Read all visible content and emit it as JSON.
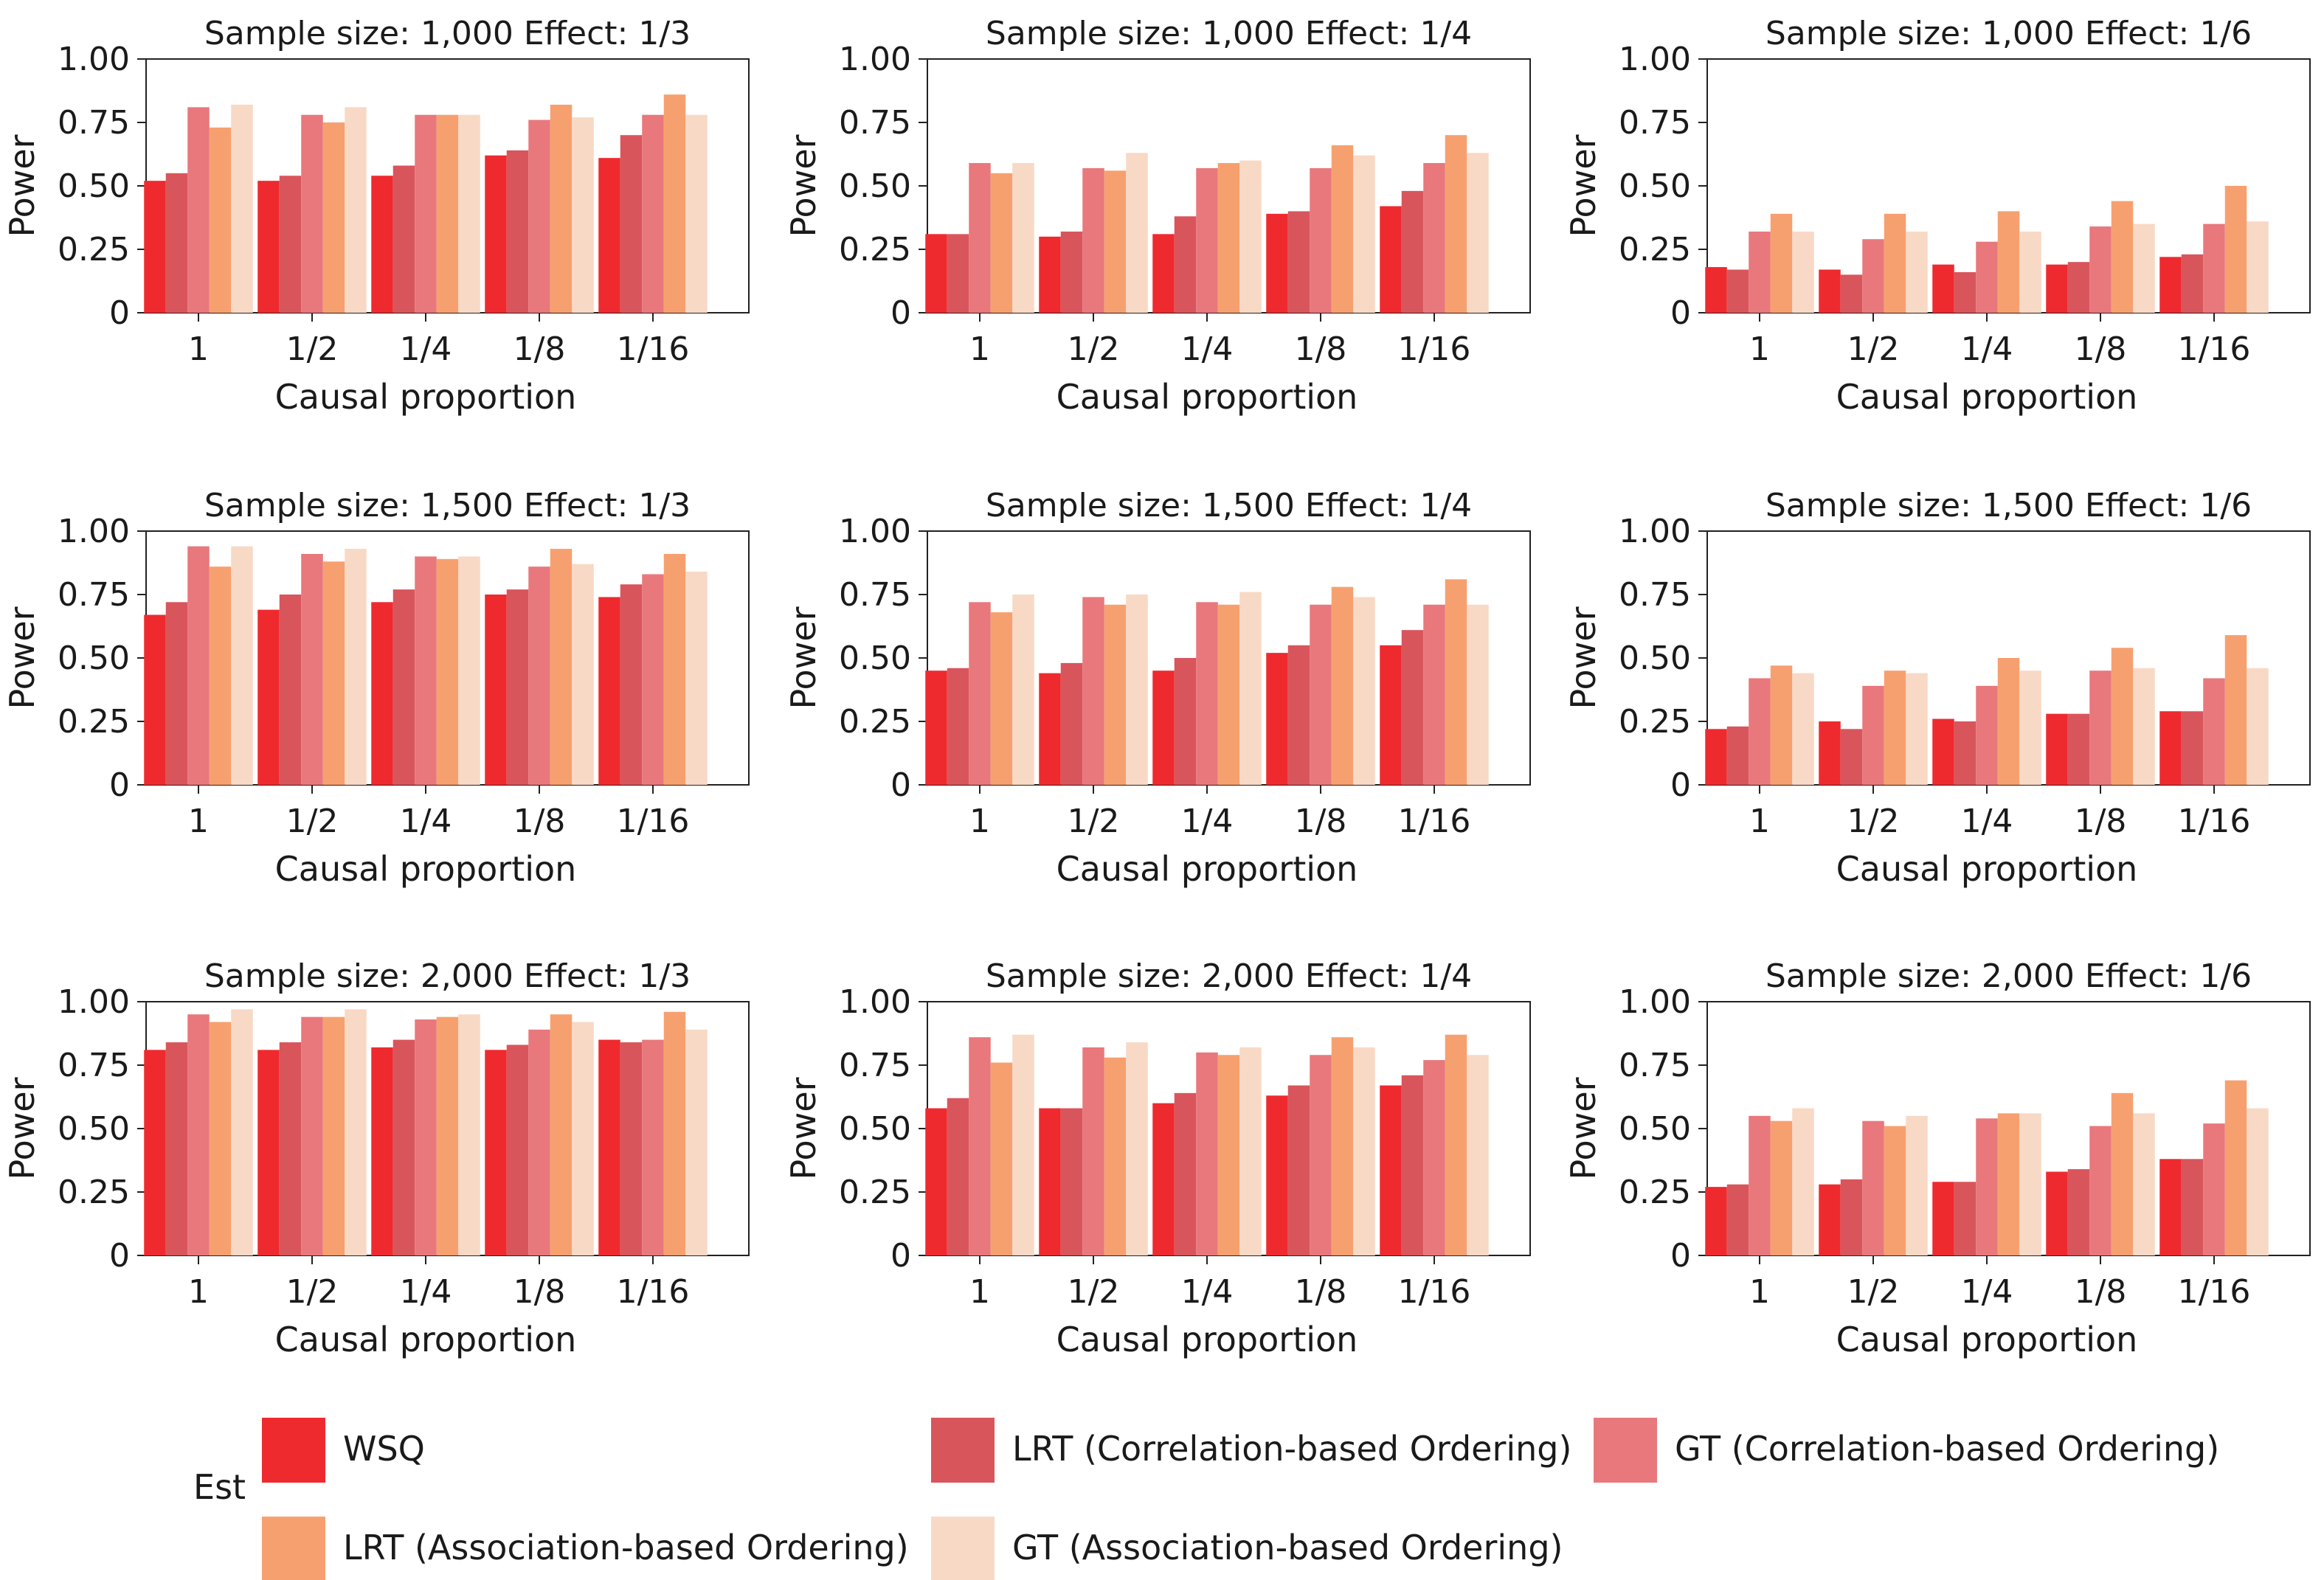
{
  "legend": {
    "title": "Est",
    "entries": [
      "WSQ",
      "LRT (Correlation-based Ordering)",
      "GT (Correlation-based Ordering)",
      "LRT (Association-based Ordering)",
      "GT (Association-based Ordering)"
    ]
  },
  "colors": [
    "#ee2a2f",
    "#d9555c",
    "#e8787c",
    "#f7a06f",
    "#f8d9c6"
  ],
  "chart_data": [
    {
      "type": "bar",
      "title": "Sample size: 1,000 Effect: 1/3",
      "xlabel": "Causal proportion",
      "ylabel": "Power",
      "ylim": [
        0,
        1
      ],
      "yticks": [
        "0",
        "0.25",
        "0.50",
        "0.75",
        "1.00"
      ],
      "categories": [
        "1",
        "1/2",
        "1/4",
        "1/8",
        "1/16"
      ],
      "series": [
        {
          "name": "WSQ",
          "values": [
            0.52,
            0.52,
            0.54,
            0.62,
            0.61
          ]
        },
        {
          "name": "LRT (Correlation-based Ordering)",
          "values": [
            0.55,
            0.54,
            0.58,
            0.64,
            0.7
          ]
        },
        {
          "name": "GT (Correlation-based Ordering)",
          "values": [
            0.81,
            0.78,
            0.78,
            0.76,
            0.78
          ]
        },
        {
          "name": "LRT (Association-based Ordering)",
          "values": [
            0.73,
            0.75,
            0.78,
            0.82,
            0.86
          ]
        },
        {
          "name": "GT (Association-based Ordering)",
          "values": [
            0.82,
            0.81,
            0.78,
            0.77,
            0.78
          ]
        }
      ]
    },
    {
      "type": "bar",
      "title": "Sample size: 1,000 Effect: 1/4",
      "xlabel": "Causal proportion",
      "ylabel": "Power",
      "ylim": [
        0,
        1
      ],
      "yticks": [
        "0",
        "0.25",
        "0.50",
        "0.75",
        "1.00"
      ],
      "categories": [
        "1",
        "1/2",
        "1/4",
        "1/8",
        "1/16"
      ],
      "series": [
        {
          "name": "WSQ",
          "values": [
            0.31,
            0.3,
            0.31,
            0.39,
            0.42
          ]
        },
        {
          "name": "LRT (Correlation-based Ordering)",
          "values": [
            0.31,
            0.32,
            0.38,
            0.4,
            0.48
          ]
        },
        {
          "name": "GT (Correlation-based Ordering)",
          "values": [
            0.59,
            0.57,
            0.57,
            0.57,
            0.59
          ]
        },
        {
          "name": "LRT (Association-based Ordering)",
          "values": [
            0.55,
            0.56,
            0.59,
            0.66,
            0.7
          ]
        },
        {
          "name": "GT (Association-based Ordering)",
          "values": [
            0.59,
            0.63,
            0.6,
            0.62,
            0.63
          ]
        }
      ]
    },
    {
      "type": "bar",
      "title": "Sample size: 1,000 Effect: 1/6",
      "xlabel": "Causal proportion",
      "ylabel": "Power",
      "ylim": [
        0,
        1
      ],
      "yticks": [
        "0",
        "0.25",
        "0.50",
        "0.75",
        "1.00"
      ],
      "categories": [
        "1",
        "1/2",
        "1/4",
        "1/8",
        "1/16"
      ],
      "series": [
        {
          "name": "WSQ",
          "values": [
            0.18,
            0.17,
            0.19,
            0.19,
            0.22
          ]
        },
        {
          "name": "LRT (Correlation-based Ordering)",
          "values": [
            0.17,
            0.15,
            0.16,
            0.2,
            0.23
          ]
        },
        {
          "name": "GT (Correlation-based Ordering)",
          "values": [
            0.32,
            0.29,
            0.28,
            0.34,
            0.35
          ]
        },
        {
          "name": "LRT (Association-based Ordering)",
          "values": [
            0.39,
            0.39,
            0.4,
            0.44,
            0.5
          ]
        },
        {
          "name": "GT (Association-based Ordering)",
          "values": [
            0.32,
            0.32,
            0.32,
            0.35,
            0.36
          ]
        }
      ]
    },
    {
      "type": "bar",
      "title": "Sample size: 1,500 Effect: 1/3",
      "xlabel": "Causal proportion",
      "ylabel": "Power",
      "ylim": [
        0,
        1
      ],
      "yticks": [
        "0",
        "0.25",
        "0.50",
        "0.75",
        "1.00"
      ],
      "categories": [
        "1",
        "1/2",
        "1/4",
        "1/8",
        "1/16"
      ],
      "series": [
        {
          "name": "WSQ",
          "values": [
            0.67,
            0.69,
            0.72,
            0.75,
            0.74
          ]
        },
        {
          "name": "LRT (Correlation-based Ordering)",
          "values": [
            0.72,
            0.75,
            0.77,
            0.77,
            0.79
          ]
        },
        {
          "name": "GT (Correlation-based Ordering)",
          "values": [
            0.94,
            0.91,
            0.9,
            0.86,
            0.83
          ]
        },
        {
          "name": "LRT (Association-based Ordering)",
          "values": [
            0.86,
            0.88,
            0.89,
            0.93,
            0.91
          ]
        },
        {
          "name": "GT (Association-based Ordering)",
          "values": [
            0.94,
            0.93,
            0.9,
            0.87,
            0.84
          ]
        }
      ]
    },
    {
      "type": "bar",
      "title": "Sample size: 1,500 Effect: 1/4",
      "xlabel": "Causal proportion",
      "ylabel": "Power",
      "ylim": [
        0,
        1
      ],
      "yticks": [
        "0",
        "0.25",
        "0.50",
        "0.75",
        "1.00"
      ],
      "categories": [
        "1",
        "1/2",
        "1/4",
        "1/8",
        "1/16"
      ],
      "series": [
        {
          "name": "WSQ",
          "values": [
            0.45,
            0.44,
            0.45,
            0.52,
            0.55
          ]
        },
        {
          "name": "LRT (Correlation-based Ordering)",
          "values": [
            0.46,
            0.48,
            0.5,
            0.55,
            0.61
          ]
        },
        {
          "name": "GT (Correlation-based Ordering)",
          "values": [
            0.72,
            0.74,
            0.72,
            0.71,
            0.71
          ]
        },
        {
          "name": "LRT (Association-based Ordering)",
          "values": [
            0.68,
            0.71,
            0.71,
            0.78,
            0.81
          ]
        },
        {
          "name": "GT (Association-based Ordering)",
          "values": [
            0.75,
            0.75,
            0.76,
            0.74,
            0.71
          ]
        }
      ]
    },
    {
      "type": "bar",
      "title": "Sample size: 1,500 Effect: 1/6",
      "xlabel": "Causal proportion",
      "ylabel": "Power",
      "ylim": [
        0,
        1
      ],
      "yticks": [
        "0",
        "0.25",
        "0.50",
        "0.75",
        "1.00"
      ],
      "categories": [
        "1",
        "1/2",
        "1/4",
        "1/8",
        "1/16"
      ],
      "series": [
        {
          "name": "WSQ",
          "values": [
            0.22,
            0.25,
            0.26,
            0.28,
            0.29
          ]
        },
        {
          "name": "LRT (Correlation-based Ordering)",
          "values": [
            0.23,
            0.22,
            0.25,
            0.28,
            0.29
          ]
        },
        {
          "name": "GT (Correlation-based Ordering)",
          "values": [
            0.42,
            0.39,
            0.39,
            0.45,
            0.42
          ]
        },
        {
          "name": "LRT (Association-based Ordering)",
          "values": [
            0.47,
            0.45,
            0.5,
            0.54,
            0.59
          ]
        },
        {
          "name": "GT (Association-based Ordering)",
          "values": [
            0.44,
            0.44,
            0.45,
            0.46,
            0.46
          ]
        }
      ]
    },
    {
      "type": "bar",
      "title": "Sample size: 2,000 Effect: 1/3",
      "xlabel": "Causal proportion",
      "ylabel": "Power",
      "ylim": [
        0,
        1
      ],
      "yticks": [
        "0",
        "0.25",
        "0.50",
        "0.75",
        "1.00"
      ],
      "categories": [
        "1",
        "1/2",
        "1/4",
        "1/8",
        "1/16"
      ],
      "series": [
        {
          "name": "WSQ",
          "values": [
            0.81,
            0.81,
            0.82,
            0.81,
            0.85
          ]
        },
        {
          "name": "LRT (Correlation-based Ordering)",
          "values": [
            0.84,
            0.84,
            0.85,
            0.83,
            0.84
          ]
        },
        {
          "name": "GT (Correlation-based Ordering)",
          "values": [
            0.95,
            0.94,
            0.93,
            0.89,
            0.85
          ]
        },
        {
          "name": "LRT (Association-based Ordering)",
          "values": [
            0.92,
            0.94,
            0.94,
            0.95,
            0.96
          ]
        },
        {
          "name": "GT (Association-based Ordering)",
          "values": [
            0.97,
            0.97,
            0.95,
            0.92,
            0.89
          ]
        }
      ]
    },
    {
      "type": "bar",
      "title": "Sample size: 2,000 Effect: 1/4",
      "xlabel": "Causal proportion",
      "ylabel": "Power",
      "ylim": [
        0,
        1
      ],
      "yticks": [
        "0",
        "0.25",
        "0.50",
        "0.75",
        "1.00"
      ],
      "categories": [
        "1",
        "1/2",
        "1/4",
        "1/8",
        "1/16"
      ],
      "series": [
        {
          "name": "WSQ",
          "values": [
            0.58,
            0.58,
            0.6,
            0.63,
            0.67
          ]
        },
        {
          "name": "LRT (Correlation-based Ordering)",
          "values": [
            0.62,
            0.58,
            0.64,
            0.67,
            0.71
          ]
        },
        {
          "name": "GT (Correlation-based Ordering)",
          "values": [
            0.86,
            0.82,
            0.8,
            0.79,
            0.77
          ]
        },
        {
          "name": "LRT (Association-based Ordering)",
          "values": [
            0.76,
            0.78,
            0.79,
            0.86,
            0.87
          ]
        },
        {
          "name": "GT (Association-based Ordering)",
          "values": [
            0.87,
            0.84,
            0.82,
            0.82,
            0.79
          ]
        }
      ]
    },
    {
      "type": "bar",
      "title": "Sample size: 2,000 Effect: 1/6",
      "xlabel": "Causal proportion",
      "ylabel": "Power",
      "ylim": [
        0,
        1
      ],
      "yticks": [
        "0",
        "0.25",
        "0.50",
        "0.75",
        "1.00"
      ],
      "categories": [
        "1",
        "1/2",
        "1/4",
        "1/8",
        "1/16"
      ],
      "series": [
        {
          "name": "WSQ",
          "values": [
            0.27,
            0.28,
            0.29,
            0.33,
            0.38
          ]
        },
        {
          "name": "LRT (Correlation-based Ordering)",
          "values": [
            0.28,
            0.3,
            0.29,
            0.34,
            0.38
          ]
        },
        {
          "name": "GT (Correlation-based Ordering)",
          "values": [
            0.55,
            0.53,
            0.54,
            0.51,
            0.52
          ]
        },
        {
          "name": "LRT (Association-based Ordering)",
          "values": [
            0.53,
            0.51,
            0.56,
            0.64,
            0.69
          ]
        },
        {
          "name": "GT (Association-based Ordering)",
          "values": [
            0.58,
            0.55,
            0.56,
            0.56,
            0.58
          ]
        }
      ]
    }
  ]
}
